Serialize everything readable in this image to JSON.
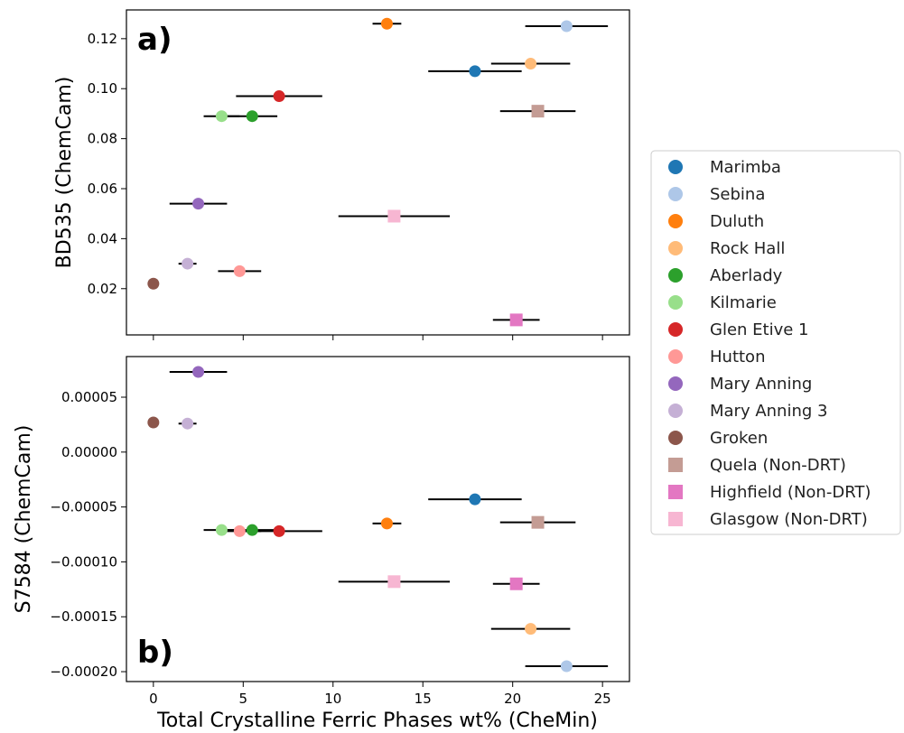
{
  "chart_data": {
    "type": "scatter",
    "xlabel": "Total Crystalline Ferric Phases wt% (CheMin)",
    "xlim": [
      -1.5,
      26.5
    ],
    "xticks": [
      0,
      5,
      10,
      15,
      20,
      25
    ],
    "xtick_labels": [
      "0",
      "5",
      "10",
      "15",
      "20",
      "25"
    ],
    "legend_position": "right",
    "panels": [
      {
        "label": "a)",
        "ylabel": "BD535 (ChemCam)",
        "ylim": [
          0.0015,
          0.1315
        ],
        "yticks": [
          0.02,
          0.04,
          0.06,
          0.08,
          0.1,
          0.12
        ],
        "ytick_labels": [
          "0.02",
          "0.04",
          "0.06",
          "0.08",
          "0.10",
          "0.12"
        ]
      },
      {
        "label": "b)",
        "ylabel": "S7584 (ChemCam)",
        "ylim": [
          -0.000209,
          8.7e-05
        ],
        "yticks": [
          5e-05,
          0.0,
          -5e-05,
          -0.0001,
          -0.00015,
          -0.0002
        ],
        "ytick_labels": [
          "0.00005",
          "0.00000",
          "−0.00005",
          "−0.00010",
          "−0.00015",
          "−0.00020"
        ]
      }
    ],
    "series": [
      {
        "name": "Marimba",
        "color": "#1f77b4",
        "marker": "circle",
        "x": 17.9,
        "xerr": [
          15.3,
          20.5
        ],
        "ya": 0.107,
        "yb": -4.3e-05
      },
      {
        "name": "Sebina",
        "color": "#aec7e8",
        "marker": "circle",
        "x": 23.0,
        "xerr": [
          20.7,
          25.3
        ],
        "ya": 0.125,
        "yb": -0.000195
      },
      {
        "name": "Duluth",
        "color": "#ff7f0e",
        "marker": "circle",
        "x": 13.0,
        "xerr": [
          12.2,
          13.8
        ],
        "ya": 0.126,
        "yb": -6.5e-05
      },
      {
        "name": "Rock Hall",
        "color": "#ffbb78",
        "marker": "circle",
        "x": 21.0,
        "xerr": [
          18.8,
          23.2
        ],
        "ya": 0.11,
        "yb": -0.000161
      },
      {
        "name": "Aberlady",
        "color": "#2ca02c",
        "marker": "circle",
        "x": 5.5,
        "xerr": [
          4.1,
          6.9
        ],
        "ya": 0.089,
        "yb": -7.1e-05
      },
      {
        "name": "Kilmarie",
        "color": "#98df8a",
        "marker": "circle",
        "x": 3.8,
        "xerr": [
          2.8,
          4.8
        ],
        "ya": 0.089,
        "yb": -7.1e-05
      },
      {
        "name": "Glen Etive 1",
        "color": "#d62728",
        "marker": "circle",
        "x": 7.0,
        "xerr": [
          4.6,
          9.4
        ],
        "ya": 0.097,
        "yb": -7.2e-05
      },
      {
        "name": "Hutton",
        "color": "#ff9896",
        "marker": "circle",
        "x": 4.8,
        "xerr": [
          3.6,
          6.0
        ],
        "ya": 0.027,
        "yb": -7.2e-05
      },
      {
        "name": "Mary Anning",
        "color": "#9467bd",
        "marker": "circle",
        "x": 2.5,
        "xerr": [
          0.9,
          4.1
        ],
        "ya": 0.054,
        "yb": 7.3e-05
      },
      {
        "name": "Mary Anning 3",
        "color": "#c5b0d5",
        "marker": "circle",
        "x": 1.9,
        "xerr": [
          1.4,
          2.4
        ],
        "ya": 0.03,
        "yb": 2.6e-05
      },
      {
        "name": "Groken",
        "color": "#8c564b",
        "marker": "circle",
        "x": 0.0,
        "xerr": [
          0.0,
          0.0
        ],
        "ya": 0.022,
        "yb": 2.7e-05
      },
      {
        "name": "Quela (Non-DRT)",
        "color": "#c49c94",
        "marker": "square",
        "x": 21.4,
        "xerr": [
          19.3,
          23.5
        ],
        "ya": 0.091,
        "yb": -6.4e-05
      },
      {
        "name": "Highfield (Non-DRT)",
        "color": "#e377c2",
        "marker": "square",
        "x": 20.2,
        "xerr": [
          18.9,
          21.5
        ],
        "ya": 0.0075,
        "yb": -0.00012
      },
      {
        "name": "Glasgow (Non-DRT)",
        "color": "#f7b6d2",
        "marker": "square",
        "x": 13.4,
        "xerr": [
          10.3,
          16.5
        ],
        "ya": 0.049,
        "yb": -0.000118
      }
    ]
  }
}
